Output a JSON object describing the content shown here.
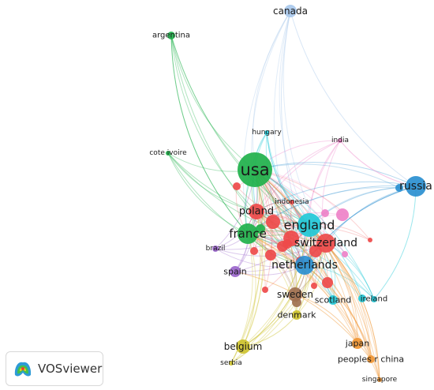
{
  "network": {
    "nodes": [
      {
        "id": "canada",
        "label": "canada",
        "cluster": "lightblue"
      },
      {
        "id": "argentina",
        "label": "argentina",
        "cluster": "green"
      },
      {
        "id": "hungary",
        "label": "hungary",
        "cluster": "cyan"
      },
      {
        "id": "india",
        "label": "india",
        "cluster": "pink"
      },
      {
        "id": "coteivoire",
        "label": "cote ivoire",
        "cluster": "green"
      },
      {
        "id": "usa",
        "label": "usa",
        "cluster": "green"
      },
      {
        "id": "russia",
        "label": "russia",
        "cluster": "blue"
      },
      {
        "id": "indonesia",
        "label": "indonesia",
        "cluster": "red"
      },
      {
        "id": "poland",
        "label": "poland",
        "cluster": "red"
      },
      {
        "id": "england",
        "label": "england",
        "cluster": "cyan"
      },
      {
        "id": "france",
        "label": "france",
        "cluster": "green"
      },
      {
        "id": "switzerland",
        "label": "switzerland",
        "cluster": "red"
      },
      {
        "id": "brazil",
        "label": "brazil",
        "cluster": "purple"
      },
      {
        "id": "netherlands",
        "label": "netherlands",
        "cluster": "blue"
      },
      {
        "id": "spain",
        "label": "spain",
        "cluster": "purple"
      },
      {
        "id": "sweden",
        "label": "sweden",
        "cluster": "brown"
      },
      {
        "id": "scotland",
        "label": "scotland",
        "cluster": "cyan"
      },
      {
        "id": "ireland",
        "label": "ireland",
        "cluster": "cyan"
      },
      {
        "id": "denmark",
        "label": "denmark",
        "cluster": "yellow"
      },
      {
        "id": "belgium",
        "label": "belgium",
        "cluster": "yellow"
      },
      {
        "id": "japan",
        "label": "japan",
        "cluster": "orange"
      },
      {
        "id": "peoplesrchina",
        "label": "peoples r china",
        "cluster": "orange"
      },
      {
        "id": "serbia",
        "label": "serbia",
        "cluster": "yellow"
      },
      {
        "id": "singapore",
        "label": "singapore",
        "cluster": "orange"
      }
    ],
    "cluster_colors": {
      "green": "#1fb14b",
      "red": "#ee4a4a",
      "cyan": "#22c9d8",
      "blue": "#2a8fd0",
      "lightblue": "#a8c8ec",
      "pink": "#ee82c8",
      "purple": "#9b66cc",
      "brown": "#a07050",
      "yellow": "#cdc22e",
      "orange": "#f09633"
    }
  },
  "branding": {
    "logo_text": "VOSviewer",
    "logo_icon": "vosviewer-logo-icon"
  }
}
